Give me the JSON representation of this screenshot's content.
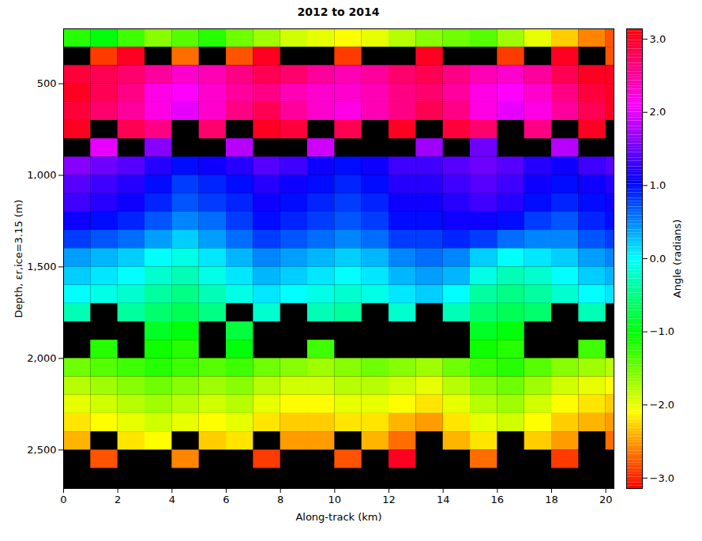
{
  "chart_data": {
    "type": "heatmap",
    "title": "2012 to 2014",
    "x_label": "Along-track (km)",
    "y_label": "Depth, εr,ice=3.15 (m)",
    "xlim": [
      0,
      20.3
    ],
    "xticks": [
      0,
      2,
      4,
      6,
      8,
      10,
      12,
      14,
      16,
      18,
      20
    ],
    "ylim": [
      200,
      2710
    ],
    "yticks": [
      500,
      1000,
      1500,
      2000,
      2500
    ],
    "x_bins": [
      0,
      1,
      2,
      3,
      4,
      5,
      6,
      7,
      8,
      9,
      10,
      11,
      12,
      13,
      14,
      15,
      16,
      17,
      18,
      19,
      20,
      20.3
    ],
    "y_bins": [
      200,
      300,
      400,
      500,
      600,
      700,
      800,
      900,
      1000,
      1100,
      1200,
      1300,
      1400,
      1500,
      1600,
      1700,
      1800,
      1900,
      2000,
      2100,
      2200,
      2300,
      2400,
      2500,
      2600,
      2710
    ],
    "cells": [
      [
        -1.2,
        -1.0,
        -1.3,
        -1.6,
        -1.4,
        -1.2,
        -1.5,
        -1.7,
        -1.9,
        -2.0,
        -2.1,
        -2.0,
        -1.8,
        -1.6,
        -1.5,
        -1.4,
        -1.7,
        -2.0,
        -2.3,
        -2.6,
        -2.8
      ],
      [
        null,
        -2.9,
        3.0,
        null,
        -2.7,
        null,
        -2.8,
        3.0,
        null,
        null,
        -2.9,
        null,
        null,
        3.0,
        null,
        null,
        -2.9,
        null,
        3.0,
        null,
        -2.8
      ],
      [
        2.9,
        2.8,
        2.7,
        2.5,
        2.3,
        2.4,
        2.6,
        2.8,
        2.7,
        2.5,
        2.4,
        2.5,
        2.7,
        2.8,
        2.6,
        2.4,
        2.3,
        2.5,
        2.8,
        3.0,
        3.0
      ],
      [
        3.0,
        2.8,
        2.6,
        2.2,
        2.1,
        2.3,
        2.5,
        2.6,
        2.4,
        2.3,
        2.3,
        2.4,
        2.6,
        2.7,
        2.5,
        2.2,
        2.1,
        2.3,
        2.6,
        2.9,
        3.0
      ],
      [
        2.9,
        2.7,
        2.5,
        2.2,
        2.0,
        2.3,
        2.6,
        2.8,
        2.5,
        2.3,
        2.2,
        2.4,
        2.6,
        2.8,
        2.6,
        2.2,
        2.0,
        2.2,
        2.5,
        2.8,
        3.0
      ],
      [
        3.0,
        null,
        2.8,
        2.6,
        null,
        2.7,
        null,
        3.0,
        2.9,
        null,
        2.8,
        null,
        3.0,
        null,
        2.9,
        2.7,
        null,
        2.6,
        null,
        3.0,
        null
      ],
      [
        null,
        2.0,
        null,
        1.6,
        null,
        null,
        1.8,
        null,
        null,
        1.9,
        null,
        null,
        null,
        1.7,
        null,
        1.5,
        null,
        null,
        1.8,
        null,
        null
      ],
      [
        1.6,
        1.5,
        1.4,
        1.2,
        1.0,
        1.1,
        1.2,
        1.4,
        1.3,
        1.1,
        1.0,
        1.1,
        1.3,
        1.3,
        1.4,
        1.5,
        1.4,
        1.2,
        1.1,
        1.3,
        1.4
      ],
      [
        1.4,
        1.3,
        1.2,
        1.0,
        0.8,
        0.9,
        1.0,
        1.2,
        1.1,
        1.0,
        0.9,
        1.0,
        1.2,
        1.2,
        1.3,
        1.4,
        1.3,
        1.1,
        1.0,
        1.1,
        1.2
      ],
      [
        1.3,
        1.2,
        1.1,
        0.9,
        0.7,
        0.8,
        0.9,
        1.1,
        1.0,
        0.9,
        0.8,
        0.9,
        1.1,
        1.1,
        1.2,
        1.3,
        1.2,
        1.0,
        0.9,
        1.0,
        1.1
      ],
      [
        1.1,
        1.0,
        0.9,
        0.7,
        0.5,
        0.6,
        0.8,
        1.0,
        0.9,
        0.8,
        0.7,
        0.8,
        1.0,
        1.0,
        1.1,
        1.1,
        1.0,
        0.8,
        0.7,
        0.9,
        1.0
      ],
      [
        0.8,
        0.7,
        0.6,
        0.4,
        0.2,
        0.4,
        0.6,
        0.8,
        0.7,
        0.6,
        0.5,
        0.6,
        0.8,
        0.8,
        0.9,
        0.8,
        0.6,
        0.5,
        0.5,
        0.7,
        0.8
      ],
      [
        0.4,
        0.3,
        0.2,
        0.0,
        -0.1,
        0.1,
        0.3,
        0.5,
        0.4,
        0.3,
        0.2,
        0.3,
        0.5,
        0.6,
        0.5,
        0.2,
        0.0,
        0.1,
        0.2,
        0.4,
        0.5
      ],
      [
        0.2,
        0.1,
        0.0,
        -0.2,
        -0.3,
        -0.1,
        0.1,
        0.3,
        0.2,
        0.1,
        0.0,
        0.1,
        0.3,
        0.4,
        0.3,
        -0.1,
        -0.3,
        -0.2,
        0.0,
        0.2,
        0.3
      ],
      [
        0.0,
        -0.1,
        -0.2,
        -0.4,
        -0.5,
        -0.3,
        -0.1,
        0.1,
        0.0,
        -0.1,
        -0.2,
        -0.1,
        0.1,
        0.2,
        0.0,
        -0.4,
        -0.5,
        -0.4,
        -0.2,
        0.0,
        0.1
      ],
      [
        -0.3,
        null,
        -0.4,
        -0.6,
        -0.7,
        -0.5,
        null,
        -0.2,
        null,
        -0.3,
        -0.4,
        null,
        -0.2,
        null,
        -0.3,
        -0.6,
        -0.7,
        -0.6,
        null,
        -0.3,
        null
      ],
      [
        null,
        null,
        null,
        -0.9,
        -1.0,
        null,
        -0.8,
        null,
        null,
        null,
        null,
        null,
        null,
        null,
        null,
        -0.9,
        -1.0,
        null,
        null,
        null,
        null
      ],
      [
        null,
        -1.2,
        null,
        -1.1,
        -1.2,
        null,
        -1.0,
        null,
        null,
        -1.3,
        null,
        null,
        null,
        null,
        null,
        -1.1,
        -1.2,
        null,
        null,
        -1.3,
        null
      ],
      [
        -1.5,
        -1.4,
        -1.3,
        -1.2,
        -1.3,
        -1.4,
        -1.3,
        -1.5,
        -1.6,
        -1.7,
        -1.6,
        -1.5,
        -1.6,
        -1.7,
        -1.5,
        -1.3,
        -1.2,
        -1.4,
        -1.6,
        -1.7,
        -1.8
      ],
      [
        -1.8,
        -1.7,
        -1.6,
        -1.5,
        -1.6,
        -1.7,
        -1.6,
        -1.8,
        -1.9,
        -1.9,
        -1.8,
        -1.8,
        -1.9,
        -2.0,
        -1.8,
        -1.6,
        -1.5,
        -1.7,
        -1.9,
        -2.0,
        -2.1
      ],
      [
        -2.0,
        -1.9,
        -1.8,
        -1.7,
        -1.8,
        -1.9,
        -1.8,
        -2.0,
        -2.1,
        -2.1,
        -2.0,
        -2.0,
        -2.1,
        -2.2,
        -2.0,
        -1.8,
        -1.7,
        -1.9,
        -2.1,
        -2.2,
        -2.3
      ],
      [
        -2.2,
        -2.1,
        -2.0,
        -1.9,
        -2.0,
        -2.1,
        -2.0,
        -2.2,
        -2.3,
        -2.3,
        -2.2,
        -2.2,
        -2.4,
        -2.5,
        -2.2,
        -2.0,
        -1.9,
        -2.1,
        -2.3,
        -2.4,
        -2.5
      ],
      [
        -2.4,
        null,
        -2.2,
        -2.1,
        null,
        -2.3,
        -2.2,
        null,
        -2.5,
        -2.5,
        null,
        -2.4,
        -2.7,
        null,
        -2.4,
        -2.2,
        null,
        -2.3,
        -2.5,
        null,
        -2.7
      ],
      [
        null,
        -2.8,
        null,
        null,
        -2.6,
        null,
        null,
        -2.9,
        null,
        null,
        -2.8,
        null,
        3.0,
        null,
        null,
        -2.7,
        null,
        null,
        -2.9,
        null,
        null
      ],
      [
        null,
        null,
        null,
        null,
        null,
        null,
        null,
        null,
        null,
        null,
        null,
        null,
        null,
        null,
        null,
        null,
        null,
        null,
        null,
        null,
        null
      ]
    ],
    "colorbar": {
      "lim": [
        -3.1416,
        3.1416
      ],
      "ticks": [
        -3,
        -2,
        -1,
        0,
        1,
        2,
        3
      ],
      "label": "Angle (radians)"
    }
  }
}
